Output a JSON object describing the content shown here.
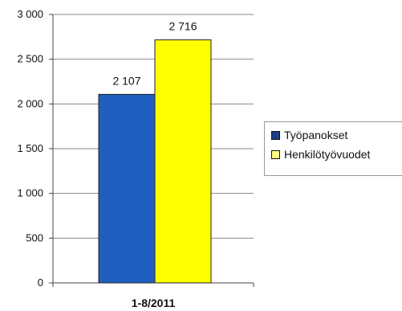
{
  "chart_data": {
    "type": "bar",
    "title": "",
    "xlabel": "",
    "ylabel": "",
    "categories": [
      "1-8/2011"
    ],
    "series": [
      {
        "name": "Työpanokset",
        "values": [
          2107
        ],
        "value_labels": [
          "2 107"
        ],
        "color": "#1f5fbf"
      },
      {
        "name": "Henkilötyövuodet",
        "values": [
          2716
        ],
        "value_labels": [
          "2 716"
        ],
        "color": "#ffff00"
      }
    ],
    "ylim": [
      0,
      3000
    ],
    "yticks": [
      0,
      500,
      1000,
      1500,
      2000,
      2500,
      3000
    ],
    "ytick_labels": [
      "0",
      "500",
      "1 000",
      "1 500",
      "2 000",
      "2 500",
      "3 000"
    ],
    "grid": true,
    "legend_position": "right"
  }
}
